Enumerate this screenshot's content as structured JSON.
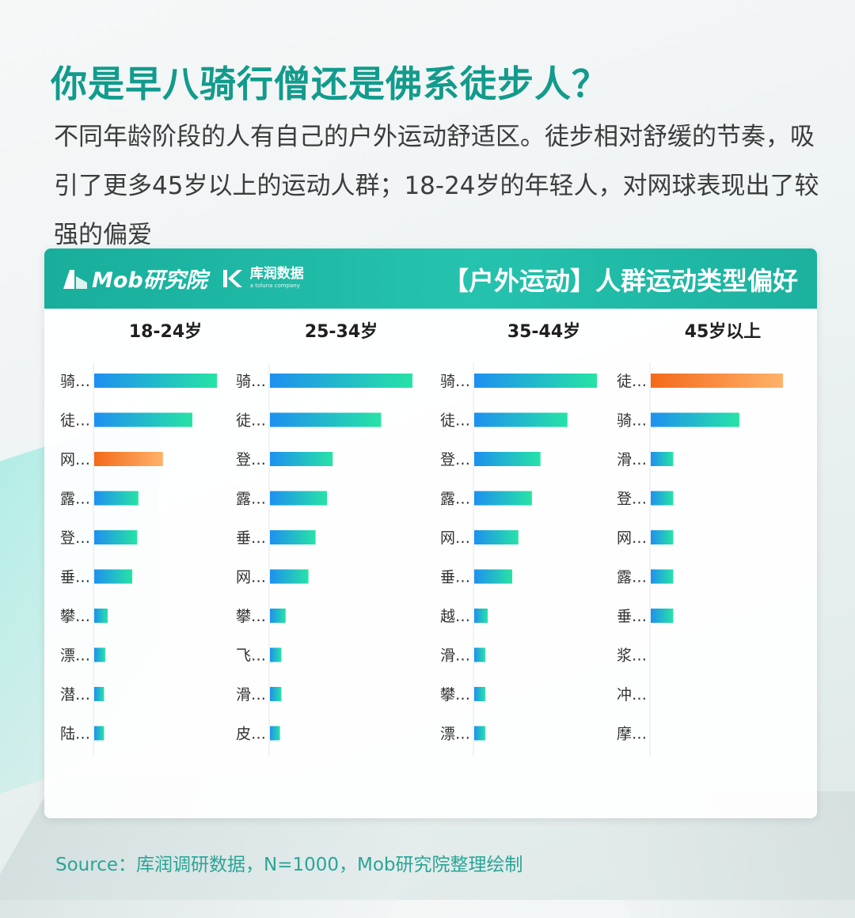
{
  "headline": "你是早八骑行僧还是佛系徒步人？",
  "lead": "不同年龄阶段的人有自己的户外运动舒适区。徒步相对舒缓的节奏，吸引了更多45岁以上的运动人群；18-24岁的年轻人，对网球表现出了较强的偏爱",
  "brand": {
    "mob": "Mob研究院",
    "kr_name": "库润数据",
    "kr_sub": "a toluna company"
  },
  "source": "Source：库润调研数据，N=1000，Mob研究院整理绘制",
  "colors": {
    "accent": "#129b8c",
    "bar_gradient": [
      "#1e90f0",
      "#26e3a5"
    ],
    "highlight_gradient": [
      "#f36a1a",
      "#ffb26a"
    ]
  },
  "chart_data": {
    "type": "bar",
    "orientation": "horizontal",
    "title": "【户外运动】人群运动类型偏好",
    "groups": [
      {
        "name": "18-24岁",
        "categories": [
          "骑…",
          "徒…",
          "网…",
          "露…",
          "登…",
          "垂…",
          "攀…",
          "漂…",
          "潜…",
          "陆…"
        ],
        "values": [
          100,
          80,
          56,
          36,
          35,
          31,
          11,
          9,
          8,
          8
        ],
        "highlight_index": 2
      },
      {
        "name": "25-34岁",
        "categories": [
          "骑…",
          "徒…",
          "登…",
          "露…",
          "垂…",
          "网…",
          "攀…",
          "飞…",
          "滑…",
          "皮…"
        ],
        "values": [
          100,
          78,
          44,
          40,
          32,
          27,
          11,
          8,
          8,
          7
        ],
        "highlight_index": null
      },
      {
        "name": "35-44岁",
        "categories": [
          "骑…",
          "徒…",
          "登…",
          "露…",
          "网…",
          "垂…",
          "越…",
          "滑…",
          "攀…",
          "漂…"
        ],
        "values": [
          100,
          76,
          54,
          47,
          36,
          31,
          11,
          9,
          9,
          9
        ],
        "highlight_index": null
      },
      {
        "name": "45岁以上",
        "categories": [
          "徒…",
          "骑…",
          "滑…",
          "登…",
          "网…",
          "露…",
          "垂…",
          "浆…",
          "冲…",
          "摩…"
        ],
        "values": [
          100,
          67,
          17,
          17,
          17,
          17,
          17,
          0,
          0,
          0
        ],
        "highlight_index": 0
      }
    ],
    "value_axis": {
      "min": 0,
      "max": 100,
      "labels_shown": false
    },
    "grid": false,
    "legend": "none"
  }
}
